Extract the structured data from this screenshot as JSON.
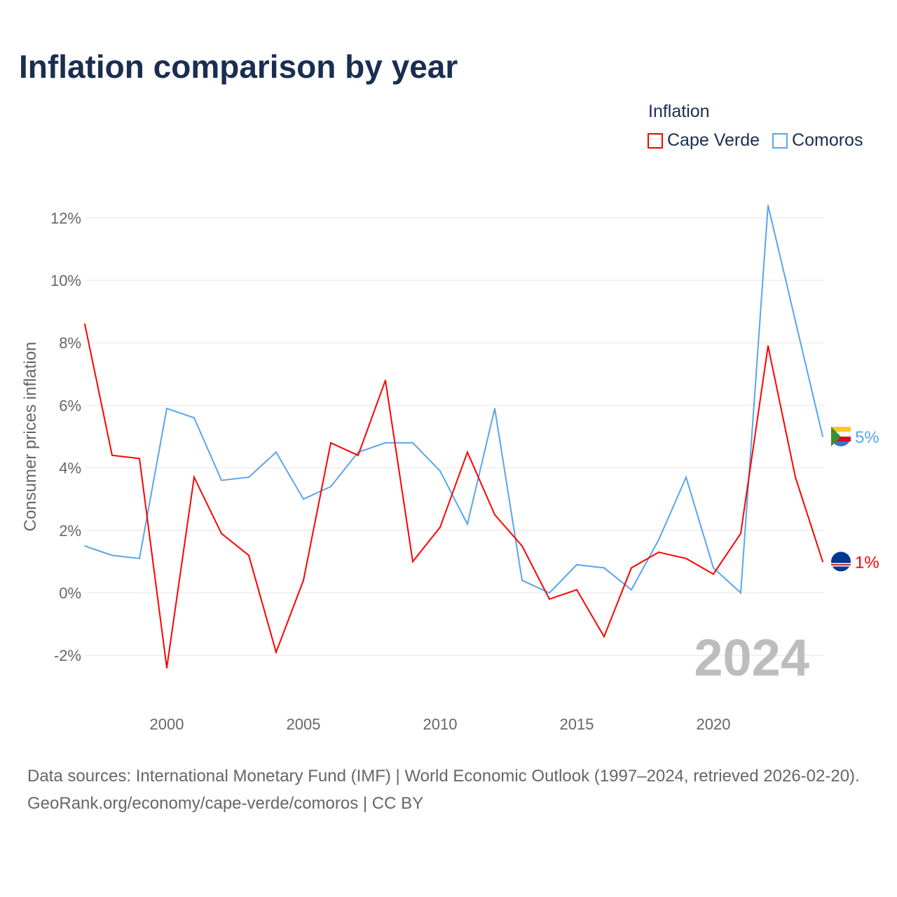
{
  "title": "Inflation comparison by year",
  "legend": {
    "title": "Inflation",
    "items": [
      {
        "label": "Cape Verde",
        "color": "#ff0000"
      },
      {
        "label": "Comoros",
        "color": "#5aa5eb"
      }
    ]
  },
  "footer": {
    "sources": "Data sources: International Monetary Fund (IMF) | World Economic Outlook (1997–2024, retrieved 2026-02-20).",
    "link": "GeoRank.org/economy/cape-verde/comoros | CC BY"
  },
  "chart_data": {
    "type": "line",
    "title": "Inflation comparison by year",
    "ylabel": "Consumer prices inflation",
    "xlabel": "",
    "watermark": "2024",
    "xlim": [
      1997,
      2024
    ],
    "ylim": [
      -3,
      13
    ],
    "xticks": [
      2000,
      2005,
      2010,
      2015,
      2020
    ],
    "xtick_labels": [
      "2000",
      "2005",
      "2010",
      "2015",
      "2020"
    ],
    "yticks": [
      -2,
      0,
      2,
      4,
      6,
      8,
      10,
      12
    ],
    "ytick_labels": [
      "-2%",
      "0%",
      "2%",
      "4%",
      "6%",
      "8%",
      "10%",
      "12%"
    ],
    "grid": true,
    "legend_position": "top-right",
    "x": [
      1997,
      1998,
      1999,
      2000,
      2001,
      2002,
      2003,
      2004,
      2005,
      2006,
      2007,
      2008,
      2009,
      2010,
      2011,
      2012,
      2013,
      2014,
      2015,
      2016,
      2017,
      2018,
      2019,
      2020,
      2021,
      2022,
      2023,
      2024
    ],
    "series": [
      {
        "name": "Cape Verde",
        "color": "#ff0000",
        "end_label": "1%",
        "values": [
          8.6,
          4.4,
          4.3,
          -2.4,
          3.7,
          1.9,
          1.2,
          -1.9,
          0.4,
          4.8,
          4.4,
          6.8,
          1.0,
          2.1,
          4.5,
          2.5,
          1.5,
          -0.2,
          0.1,
          -1.4,
          0.8,
          1.3,
          1.1,
          0.6,
          1.9,
          7.9,
          3.7,
          1.0
        ]
      },
      {
        "name": "Comoros",
        "color": "#5aa5eb",
        "end_label": "5%",
        "values": [
          1.5,
          1.2,
          1.1,
          5.9,
          5.6,
          3.6,
          3.7,
          4.5,
          3.0,
          3.4,
          4.5,
          4.8,
          4.8,
          3.9,
          2.2,
          5.9,
          0.4,
          0.0,
          0.9,
          0.8,
          0.1,
          1.7,
          3.7,
          0.8,
          0.0,
          12.4,
          8.7,
          5.0
        ]
      }
    ]
  }
}
